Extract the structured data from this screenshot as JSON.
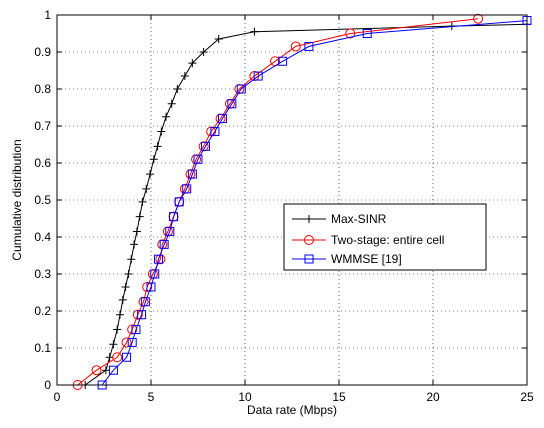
{
  "chart_data": {
    "type": "line",
    "title": "",
    "xlabel": "Data rate (Mbps)",
    "ylabel": "Cumulative distribution",
    "xlim": [
      0,
      25
    ],
    "ylim": [
      0,
      1
    ],
    "x_ticks": [
      "0",
      "5",
      "10",
      "15",
      "20",
      "25"
    ],
    "y_ticks": [
      "0",
      "0.1",
      "0.2",
      "0.3",
      "0.4",
      "0.5",
      "0.6",
      "0.7",
      "0.8",
      "0.9",
      "1"
    ],
    "grid": true,
    "legend_position": "center-right",
    "series": [
      {
        "name": "Max-SINR",
        "color": "#000000",
        "marker": "plus",
        "points": [
          [
            1.5,
            0
          ],
          [
            2.6,
            0.04
          ],
          [
            2.8,
            0.075
          ],
          [
            3.0,
            0.11
          ],
          [
            3.2,
            0.15
          ],
          [
            3.35,
            0.19
          ],
          [
            3.5,
            0.23
          ],
          [
            3.65,
            0.265
          ],
          [
            3.8,
            0.3
          ],
          [
            3.95,
            0.34
          ],
          [
            4.1,
            0.38
          ],
          [
            4.25,
            0.415
          ],
          [
            4.4,
            0.455
          ],
          [
            4.55,
            0.495
          ],
          [
            4.75,
            0.53
          ],
          [
            4.95,
            0.57
          ],
          [
            5.15,
            0.61
          ],
          [
            5.35,
            0.645
          ],
          [
            5.55,
            0.685
          ],
          [
            5.8,
            0.725
          ],
          [
            6.1,
            0.76
          ],
          [
            6.4,
            0.8
          ],
          [
            6.8,
            0.835
          ],
          [
            7.2,
            0.87
          ],
          [
            7.8,
            0.9
          ],
          [
            8.6,
            0.935
          ],
          [
            10.5,
            0.955
          ],
          [
            21.0,
            0.97
          ],
          [
            25.0,
            0.975
          ]
        ]
      },
      {
        "name": "Two-stage: entire cell",
        "color": "#ff0000",
        "marker": "circle",
        "points": [
          [
            1.1,
            0
          ],
          [
            2.1,
            0.04
          ],
          [
            3.2,
            0.075
          ],
          [
            3.7,
            0.115
          ],
          [
            4.0,
            0.15
          ],
          [
            4.3,
            0.19
          ],
          [
            4.6,
            0.225
          ],
          [
            4.8,
            0.265
          ],
          [
            5.1,
            0.3
          ],
          [
            5.5,
            0.34
          ],
          [
            5.6,
            0.38
          ],
          [
            5.9,
            0.415
          ],
          [
            6.2,
            0.455
          ],
          [
            6.5,
            0.495
          ],
          [
            6.8,
            0.53
          ],
          [
            7.1,
            0.57
          ],
          [
            7.4,
            0.61
          ],
          [
            7.8,
            0.645
          ],
          [
            8.2,
            0.685
          ],
          [
            8.7,
            0.72
          ],
          [
            9.2,
            0.76
          ],
          [
            9.7,
            0.8
          ],
          [
            10.5,
            0.835
          ],
          [
            11.6,
            0.875
          ],
          [
            12.7,
            0.915
          ],
          [
            15.6,
            0.95
          ],
          [
            22.4,
            0.99
          ]
        ]
      },
      {
        "name": "WMMSE [19]",
        "color": "#0000ff",
        "marker": "square",
        "points": [
          [
            2.4,
            0
          ],
          [
            3.0,
            0.04
          ],
          [
            3.7,
            0.075
          ],
          [
            4.0,
            0.115
          ],
          [
            4.2,
            0.15
          ],
          [
            4.5,
            0.19
          ],
          [
            4.7,
            0.225
          ],
          [
            5.0,
            0.265
          ],
          [
            5.2,
            0.3
          ],
          [
            5.4,
            0.34
          ],
          [
            5.7,
            0.38
          ],
          [
            6.0,
            0.415
          ],
          [
            6.2,
            0.455
          ],
          [
            6.5,
            0.495
          ],
          [
            6.9,
            0.53
          ],
          [
            7.2,
            0.57
          ],
          [
            7.5,
            0.61
          ],
          [
            7.9,
            0.645
          ],
          [
            8.4,
            0.685
          ],
          [
            8.8,
            0.72
          ],
          [
            9.3,
            0.76
          ],
          [
            9.8,
            0.8
          ],
          [
            10.7,
            0.835
          ],
          [
            12.0,
            0.875
          ],
          [
            13.4,
            0.915
          ],
          [
            16.5,
            0.95
          ],
          [
            25.0,
            0.985
          ]
        ]
      }
    ]
  }
}
